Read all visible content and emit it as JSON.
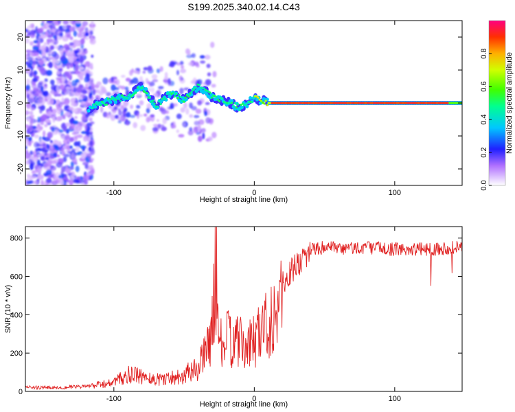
{
  "title": "S199.2025.340.02.14.C43",
  "chart_data": [
    {
      "type": "heatmap",
      "title": "S199.2025.340.02.14.C43",
      "xlabel": "Height of straight line (km)",
      "ylabel": "Frequency (Hz)",
      "xlim": [
        -163,
        148
      ],
      "ylim": [
        -25,
        25
      ],
      "xticks": [
        -100,
        0,
        100
      ],
      "yticks": [
        -20,
        -10,
        0,
        10,
        20
      ],
      "colorbar": {
        "label": "Normalized spectral amplitude",
        "range": [
          0,
          1
        ],
        "ticks": [
          "0.0",
          "0.2",
          "0.4",
          "0.6",
          "0.8"
        ]
      },
      "ridge": {
        "x": [
          -115,
          -100,
          -90,
          -80,
          -70,
          -60,
          -50,
          -40,
          -30,
          -20,
          -10,
          0,
          10,
          20,
          40,
          60,
          80,
          100,
          120,
          148
        ],
        "freq": [
          -1,
          1,
          2,
          5,
          -1,
          3,
          1,
          5,
          2,
          0.5,
          -1.5,
          1.5,
          0,
          0,
          0,
          0,
          0,
          0,
          0,
          0
        ]
      }
    },
    {
      "type": "line",
      "xlabel": "Height of straight line (km)",
      "ylabel": "SNR (10 * v/v)",
      "xlim": [
        -163,
        148
      ],
      "ylim": [
        0,
        860
      ],
      "xticks": [
        -100,
        0,
        100
      ],
      "yticks": [
        0,
        200,
        400,
        600,
        800
      ],
      "series": [
        {
          "name": "SNR",
          "color": "#e02020",
          "x": [
            -163,
            -140,
            -120,
            -100,
            -90,
            -80,
            -70,
            -60,
            -50,
            -40,
            -35,
            -30,
            -27,
            -25,
            -20,
            -15,
            -10,
            -5,
            0,
            5,
            10,
            15,
            20,
            25,
            30,
            35,
            40,
            50,
            60,
            80,
            100,
            120,
            148
          ],
          "y": [
            25,
            25,
            30,
            60,
            110,
            100,
            80,
            90,
            110,
            160,
            250,
            420,
            860,
            300,
            350,
            340,
            320,
            290,
            350,
            420,
            460,
            540,
            600,
            650,
            690,
            740,
            760,
            770,
            760,
            770,
            760,
            760,
            770
          ]
        }
      ]
    }
  ]
}
